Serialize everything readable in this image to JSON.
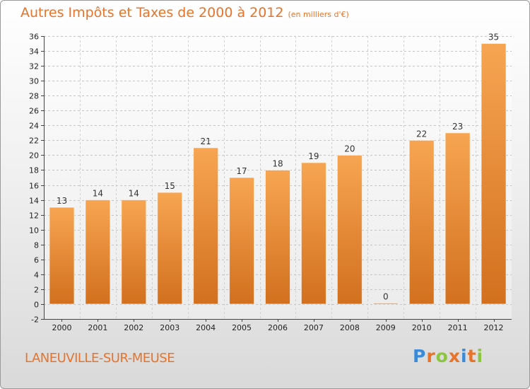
{
  "title": "Autres Impôts et Taxes de 2000 à 2012",
  "subtitle": "(en milliers d'€)",
  "city": "LANEUVILLE-SUR-MEUSE",
  "logo": "Proxiti",
  "colors": {
    "accent": "#e8732a",
    "bar_top": "#f7a552",
    "bar_bottom": "#d2701e",
    "logo_letters": [
      "#3b8ad8",
      "#e8732a",
      "#8cc63f",
      "#e8732a",
      "#3b8ad8",
      "#e8732a",
      "#8cc63f"
    ]
  },
  "chart_data": {
    "type": "bar",
    "categories": [
      "2000",
      "2001",
      "2002",
      "2003",
      "2004",
      "2005",
      "2006",
      "2007",
      "2008",
      "2009",
      "2010",
      "2011",
      "2012"
    ],
    "values": [
      13,
      14,
      14,
      15,
      21,
      17,
      18,
      19,
      20,
      0,
      22,
      23,
      35
    ],
    "ylim": [
      -2,
      36
    ],
    "yticks": [
      -2,
      0,
      2,
      4,
      6,
      8,
      10,
      12,
      14,
      16,
      18,
      20,
      22,
      24,
      26,
      28,
      30,
      32,
      34,
      36
    ],
    "grid": true,
    "title": "Autres Impôts et Taxes de 2000 à 2012",
    "xlabel": "",
    "ylabel": ""
  }
}
